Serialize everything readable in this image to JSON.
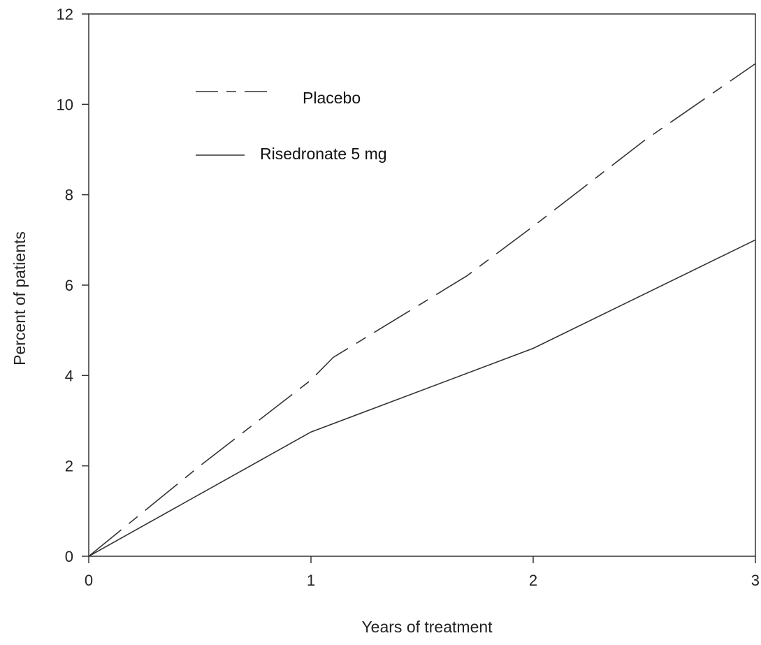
{
  "chart_data": {
    "type": "line",
    "title": "",
    "xlabel": "Years of treatment",
    "ylabel": "Percent of patients",
    "xlim": [
      0,
      3
    ],
    "ylim": [
      0,
      12
    ],
    "x_ticks": [
      0,
      1,
      2,
      3
    ],
    "y_ticks": [
      0,
      2,
      4,
      6,
      8,
      10,
      12
    ],
    "grid": false,
    "legend_position": "top-left",
    "series": [
      {
        "name": "Placebo",
        "style": "dashed",
        "color": "#333333",
        "points": [
          [
            0,
            0
          ],
          [
            0.5,
            2.0
          ],
          [
            1,
            3.9
          ],
          [
            1.1,
            4.4
          ],
          [
            1.7,
            6.2
          ],
          [
            2,
            7.3
          ],
          [
            2.5,
            9.2
          ],
          [
            3,
            10.9
          ]
        ]
      },
      {
        "name": "Risedronate 5 mg",
        "style": "solid",
        "color": "#333333",
        "points": [
          [
            0,
            0
          ],
          [
            1,
            2.75
          ],
          [
            2,
            4.6
          ],
          [
            3,
            7.0
          ]
        ]
      }
    ]
  }
}
